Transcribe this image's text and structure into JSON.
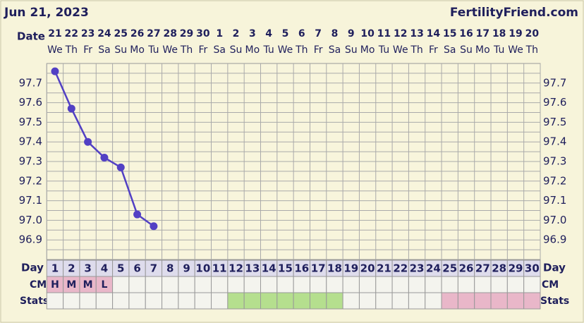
{
  "chart_data": {
    "type": "line",
    "title": "Jun 21, 2023",
    "source": "FertilityFriend.com",
    "date_label": "Date",
    "day_label": "Day",
    "cm_label": "CM",
    "stats_label": "Stats",
    "categories": [
      "21",
      "22",
      "23",
      "24",
      "25",
      "26",
      "27",
      "28",
      "29",
      "30",
      "1",
      "2",
      "3",
      "4",
      "5",
      "6",
      "7",
      "8",
      "9",
      "10",
      "11",
      "12",
      "13",
      "14",
      "15",
      "16",
      "17",
      "18",
      "19",
      "20"
    ],
    "weekdays": [
      "We",
      "Th",
      "Fr",
      "Sa",
      "Su",
      "Mo",
      "Tu",
      "We",
      "Th",
      "Fr",
      "Sa",
      "Su",
      "Mo",
      "Tu",
      "We",
      "Th",
      "Fr",
      "Sa",
      "Su",
      "Mo",
      "Tu",
      "We",
      "Th",
      "Fr",
      "Sa",
      "Su",
      "Mo",
      "Tu",
      "We",
      "Th"
    ],
    "days": [
      "1",
      "2",
      "3",
      "4",
      "5",
      "6",
      "7",
      "8",
      "9",
      "10",
      "11",
      "12",
      "13",
      "14",
      "15",
      "16",
      "17",
      "18",
      "19",
      "20",
      "21",
      "22",
      "23",
      "24",
      "25",
      "26",
      "27",
      "28",
      "29",
      "30"
    ],
    "cm": [
      "H",
      "M",
      "M",
      "L",
      null,
      null,
      null,
      null,
      null,
      null,
      null,
      null,
      null,
      null,
      null,
      null,
      null,
      null,
      null,
      null,
      null,
      null,
      null,
      null,
      null,
      null,
      null,
      null,
      null,
      null
    ],
    "cm_color": "#e9b7c9",
    "stats_colors": [
      "#f4f4ee",
      "#f4f4ee",
      "#f4f4ee",
      "#f4f4ee",
      "#f4f4ee",
      "#f4f4ee",
      "#f4f4ee",
      "#f4f4ee",
      "#f4f4ee",
      "#f4f4ee",
      "#f4f4ee",
      "#b5df8e",
      "#b5df8e",
      "#b5df8e",
      "#b5df8e",
      "#b5df8e",
      "#b5df8e",
      "#b5df8e",
      "#f4f4ee",
      "#f4f4ee",
      "#f4f4ee",
      "#f4f4ee",
      "#f4f4ee",
      "#f4f4ee",
      "#e9b7c9",
      "#e9b7c9",
      "#e9b7c9",
      "#e9b7c9",
      "#e9b7c9",
      "#e9b7c9"
    ],
    "values": [
      97.76,
      97.57,
      97.4,
      97.32,
      97.27,
      97.03,
      96.97,
      null,
      null,
      null,
      null,
      null,
      null,
      null,
      null,
      null,
      null,
      null,
      null,
      null,
      null,
      null,
      null,
      null,
      null,
      null,
      null,
      null,
      null,
      null
    ],
    "color": "#5240c4",
    "ylim": [
      96.8,
      97.8
    ],
    "yticks": [
      97.7,
      97.6,
      97.5,
      97.4,
      97.3,
      97.2,
      97.1,
      {
        "value": 97.0,
        "label": "97.0"
      },
      96.9
    ],
    "minor_yticks": [
      97.75,
      97.65,
      97.55,
      97.45,
      97.35,
      97.25,
      97.15,
      97.05,
      96.95,
      96.85
    ],
    "grid": true
  }
}
